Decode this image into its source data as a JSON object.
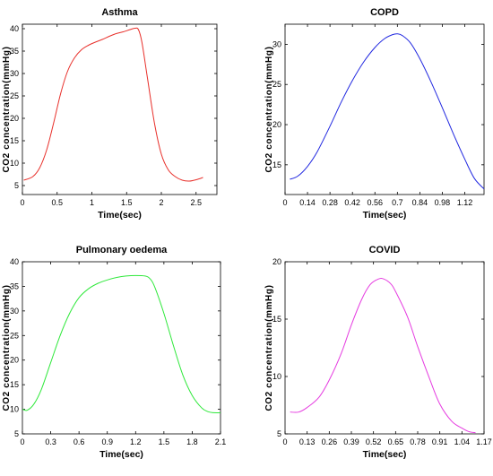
{
  "chart_data": [
    {
      "type": "line",
      "title": "Asthma",
      "xlabel": "Time(sec)",
      "ylabel": "CO2 concentration(mmHg)",
      "xlim": [
        0,
        2.8
      ],
      "ylim": [
        3,
        41
      ],
      "xticks": [
        "0",
        "0.5",
        "1",
        "1.5",
        "2",
        "2.5"
      ],
      "xtick_values": [
        0,
        0.5,
        1,
        1.5,
        2,
        2.5
      ],
      "yticks": [
        "5",
        "10",
        "15",
        "20",
        "25",
        "30",
        "35",
        "40"
      ],
      "ytick_values": [
        5,
        10,
        15,
        20,
        25,
        30,
        35,
        40
      ],
      "color": "#e8302b",
      "grid": false,
      "series": [
        {
          "x": [
            0.02,
            0.15,
            0.25,
            0.35,
            0.45,
            0.55,
            0.65,
            0.75,
            0.85,
            0.95,
            1.05,
            1.15,
            1.25,
            1.35,
            1.45,
            1.55,
            1.62,
            1.67,
            1.72,
            1.8,
            1.9,
            2.0,
            2.1,
            2.2,
            2.3,
            2.4,
            2.5,
            2.6
          ],
          "y": [
            6.2,
            7,
            9,
            13,
            19,
            25.5,
            30.5,
            33.5,
            35.3,
            36.3,
            37,
            37.6,
            38.3,
            38.9,
            39.3,
            39.8,
            40.1,
            39.8,
            37,
            29,
            19,
            12,
            8.5,
            7,
            6.2,
            6,
            6.3,
            6.8
          ]
        }
      ]
    },
    {
      "type": "line",
      "title": "COPD",
      "xlabel": "Time(sec)",
      "ylabel": "CO2 concentration(mmHg)",
      "xlim": [
        0,
        1.24
      ],
      "ylim": [
        11.3,
        32.5
      ],
      "xticks": [
        "0",
        "0.14",
        "0.28",
        "0.42",
        "0.56",
        "0.7",
        "0.84",
        "0.98",
        "1.12"
      ],
      "xtick_values": [
        0,
        0.14,
        0.28,
        0.42,
        0.56,
        0.7,
        0.84,
        0.98,
        1.12
      ],
      "yticks": [
        "15",
        "20",
        "25",
        "30"
      ],
      "ytick_values": [
        15,
        20,
        25,
        30
      ],
      "color": "#2128e0",
      "grid": false,
      "series": [
        {
          "x": [
            0.03,
            0.08,
            0.14,
            0.2,
            0.28,
            0.35,
            0.42,
            0.49,
            0.56,
            0.62,
            0.67,
            0.7,
            0.73,
            0.78,
            0.84,
            0.91,
            0.98,
            1.05,
            1.12,
            1.18,
            1.24
          ],
          "y": [
            13.2,
            13.6,
            14.8,
            16.6,
            19.8,
            22.8,
            25.5,
            27.8,
            29.6,
            30.7,
            31.2,
            31.3,
            31.1,
            30.2,
            28.2,
            25.3,
            22.1,
            18.8,
            15.7,
            13.3,
            12
          ]
        }
      ]
    },
    {
      "type": "line",
      "title": "Pulmonary oedema",
      "xlabel": "Time(sec)",
      "ylabel": "CO2 concentration(mmHg)",
      "xlim": [
        0,
        2.1
      ],
      "ylim": [
        5,
        40
      ],
      "xticks": [
        "0",
        "0.3",
        "0.6",
        "0.9",
        "1.2",
        "1.5",
        "1.8",
        "2.1"
      ],
      "xtick_values": [
        0,
        0.3,
        0.6,
        0.9,
        1.2,
        1.5,
        1.8,
        2.1
      ],
      "yticks": [
        "5",
        "10",
        "15",
        "20",
        "25",
        "30",
        "35",
        "40"
      ],
      "ytick_values": [
        5,
        10,
        15,
        20,
        25,
        30,
        35,
        40
      ],
      "color": "#2ee83a",
      "grid": false,
      "series": [
        {
          "x": [
            0,
            0.05,
            0.12,
            0.2,
            0.3,
            0.4,
            0.5,
            0.6,
            0.7,
            0.8,
            0.9,
            1.0,
            1.1,
            1.2,
            1.3,
            1.35,
            1.4,
            1.5,
            1.6,
            1.7,
            1.8,
            1.9,
            1.97,
            2.03,
            2.1
          ],
          "y": [
            10,
            9.8,
            11,
            14,
            19.5,
            25,
            29.5,
            32.7,
            34.5,
            35.6,
            36.3,
            36.8,
            37.1,
            37.2,
            37.1,
            36.6,
            35,
            29.5,
            23,
            17,
            12.8,
            10.3,
            9.5,
            9.3,
            9.3
          ]
        }
      ]
    },
    {
      "type": "line",
      "title": "COVID",
      "xlabel": "Time(sec)",
      "ylabel": "CO2 concentration(mmHg)",
      "xlim": [
        0,
        1.17
      ],
      "ylim": [
        5,
        20
      ],
      "xticks": [
        "0",
        "0.13",
        "0.26",
        "0.39",
        "0.52",
        "0.65",
        "0.78",
        "0.91",
        "1.04",
        "1.17"
      ],
      "xtick_values": [
        0,
        0.13,
        0.26,
        0.39,
        0.52,
        0.65,
        0.78,
        0.91,
        1.04,
        1.17
      ],
      "yticks": [
        "5",
        "10",
        "15",
        "20"
      ],
      "ytick_values": [
        5,
        10,
        15,
        20
      ],
      "color": "#e53ce0",
      "grid": false,
      "series": [
        {
          "x": [
            0.03,
            0.08,
            0.13,
            0.2,
            0.26,
            0.33,
            0.39,
            0.45,
            0.5,
            0.55,
            0.58,
            0.62,
            0.65,
            0.72,
            0.78,
            0.85,
            0.91,
            0.98,
            1.04,
            1.08,
            1.12
          ],
          "y": [
            6.9,
            6.9,
            7.3,
            8.2,
            9.7,
            12,
            14.5,
            16.7,
            18,
            18.5,
            18.5,
            18.1,
            17.4,
            15.2,
            12.6,
            9.8,
            7.6,
            6.1,
            5.5,
            5.2,
            5.1
          ]
        }
      ]
    }
  ]
}
